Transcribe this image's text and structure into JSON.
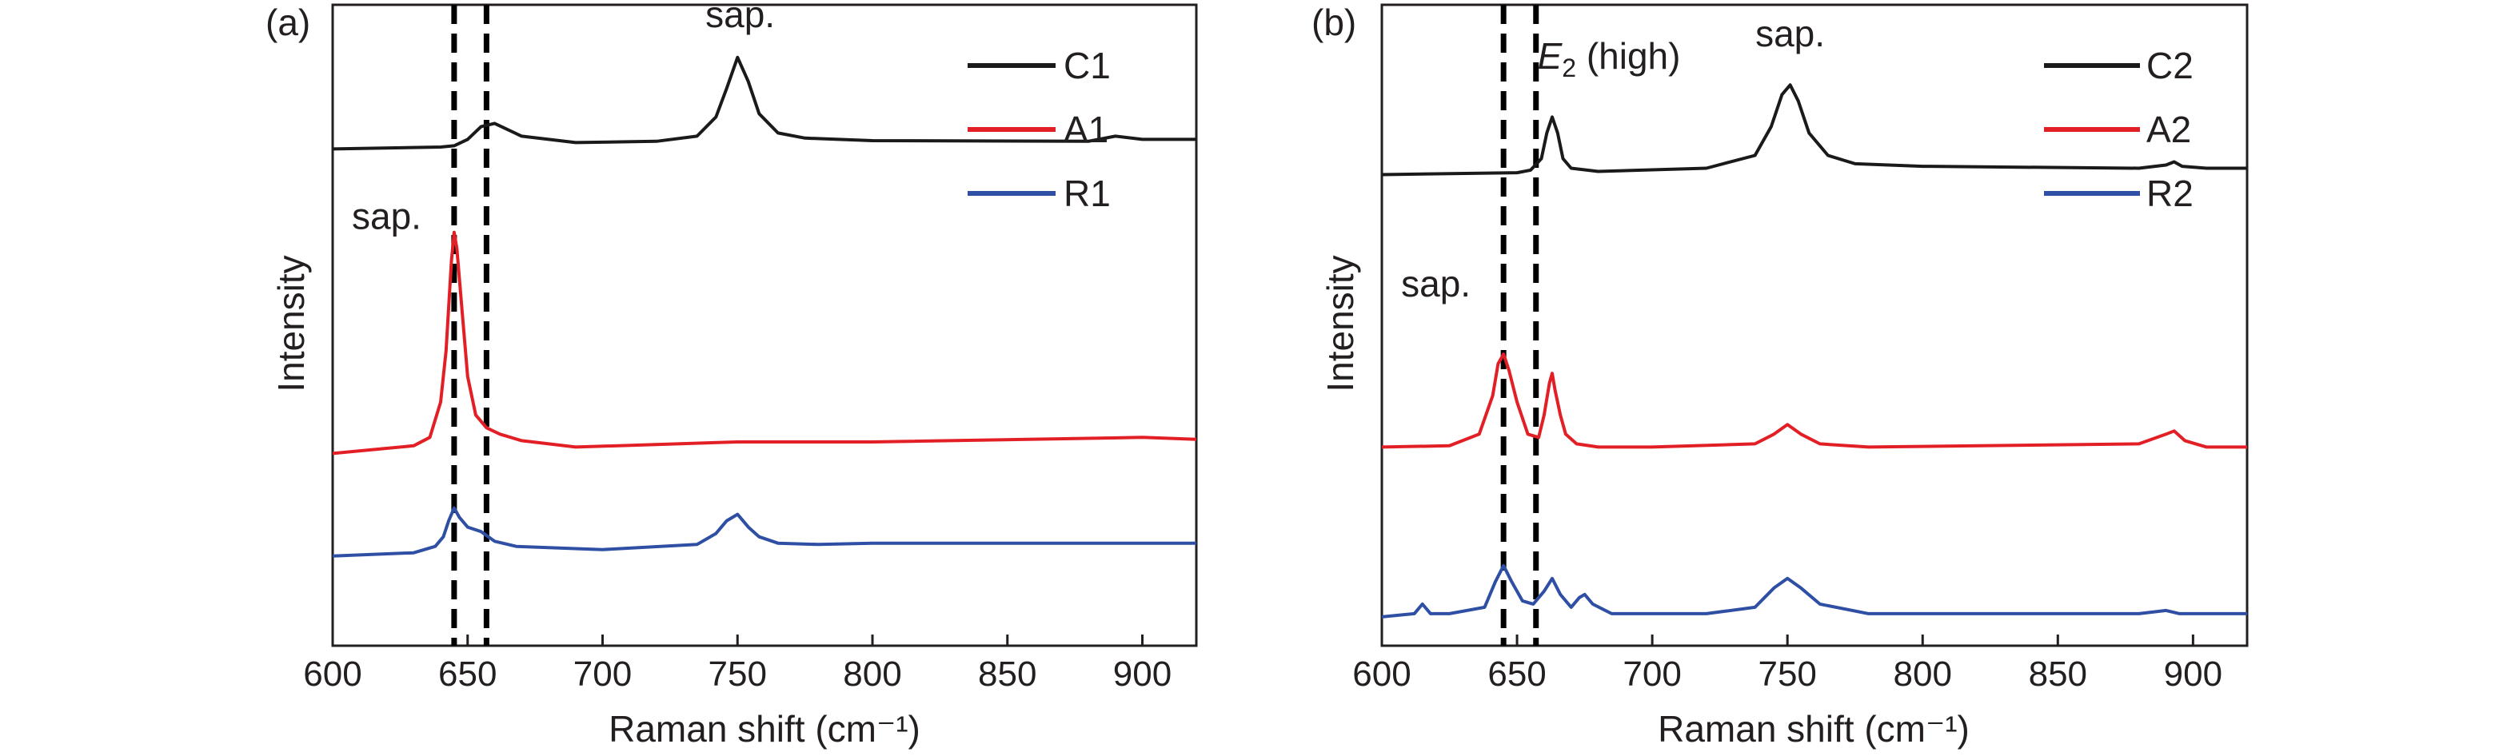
{
  "chart_data": [
    {
      "type": "line",
      "panel_label": "(a)",
      "xlabel": "Raman shift (cm⁻¹)",
      "ylabel": "Intensity",
      "xlim": [
        600,
        920
      ],
      "ylim": [
        0,
        1
      ],
      "xticks": [
        600,
        650,
        700,
        750,
        800,
        850,
        900
      ],
      "y_ticks_shown": false,
      "grid": false,
      "legend": "top-right",
      "reference_lines_x": [
        645,
        657
      ],
      "series": [
        {
          "name": "C1",
          "color": "#1a1a1a",
          "x": [
            600,
            640,
            645,
            650,
            655,
            660,
            665,
            670,
            690,
            720,
            735,
            742,
            746,
            750,
            754,
            758,
            765,
            775,
            800,
            880,
            890,
            900,
            920
          ],
          "y": [
            0.775,
            0.778,
            0.78,
            0.79,
            0.81,
            0.815,
            0.805,
            0.795,
            0.785,
            0.787,
            0.795,
            0.825,
            0.87,
            0.918,
            0.88,
            0.83,
            0.8,
            0.792,
            0.788,
            0.787,
            0.795,
            0.79,
            0.79
          ]
        },
        {
          "name": "A1",
          "color": "#e31f26",
          "x": [
            600,
            620,
            630,
            636,
            640,
            642,
            644,
            645,
            646,
            648,
            650,
            653,
            657,
            662,
            670,
            690,
            750,
            800,
            900,
            920
          ],
          "y": [
            0.3,
            0.308,
            0.312,
            0.325,
            0.38,
            0.46,
            0.6,
            0.645,
            0.62,
            0.52,
            0.42,
            0.36,
            0.34,
            0.33,
            0.32,
            0.31,
            0.318,
            0.318,
            0.325,
            0.322
          ]
        },
        {
          "name": "R1",
          "color": "#2e4fa3",
          "x": [
            600,
            630,
            638,
            641,
            643,
            645,
            647,
            650,
            655,
            660,
            668,
            700,
            735,
            742,
            746,
            750,
            754,
            758,
            765,
            780,
            800,
            900,
            920
          ],
          "y": [
            0.14,
            0.145,
            0.155,
            0.17,
            0.195,
            0.215,
            0.2,
            0.185,
            0.178,
            0.163,
            0.155,
            0.15,
            0.158,
            0.175,
            0.195,
            0.205,
            0.185,
            0.17,
            0.16,
            0.158,
            0.16,
            0.16,
            0.16
          ]
        }
      ],
      "annotations": [
        {
          "text": "sap.",
          "x": 751,
          "y": 0.965
        },
        {
          "text": "sap.",
          "x": 620,
          "y": 0.65
        }
      ]
    },
    {
      "type": "line",
      "panel_label": "(b)",
      "xlabel": "Raman shift (cm⁻¹)",
      "ylabel": "Intensity",
      "xlim": [
        600,
        920
      ],
      "ylim": [
        0,
        1
      ],
      "xticks": [
        600,
        650,
        700,
        750,
        800,
        850,
        900
      ],
      "y_ticks_shown": false,
      "grid": false,
      "legend": "top-right",
      "reference_lines_x": [
        645,
        657
      ],
      "series": [
        {
          "name": "C2",
          "color": "#1a1a1a",
          "x": [
            600,
            650,
            655,
            659,
            661,
            663,
            665,
            667,
            670,
            680,
            720,
            738,
            744,
            748,
            751,
            754,
            758,
            765,
            775,
            800,
            880,
            890,
            893,
            896,
            905,
            920
          ],
          "y": [
            0.735,
            0.738,
            0.742,
            0.76,
            0.8,
            0.825,
            0.8,
            0.76,
            0.745,
            0.74,
            0.745,
            0.765,
            0.81,
            0.86,
            0.875,
            0.85,
            0.8,
            0.765,
            0.752,
            0.748,
            0.745,
            0.75,
            0.755,
            0.748,
            0.745,
            0.745
          ]
        },
        {
          "name": "A2",
          "color": "#e31f26",
          "x": [
            600,
            625,
            636,
            641,
            643,
            645,
            647,
            650,
            654,
            658,
            660,
            662,
            663,
            664,
            666,
            668,
            672,
            680,
            700,
            738,
            745,
            750,
            755,
            762,
            780,
            880,
            890,
            893,
            897,
            905,
            920
          ],
          "y": [
            0.31,
            0.312,
            0.33,
            0.39,
            0.44,
            0.455,
            0.43,
            0.38,
            0.33,
            0.325,
            0.36,
            0.41,
            0.425,
            0.4,
            0.36,
            0.33,
            0.315,
            0.31,
            0.31,
            0.315,
            0.33,
            0.345,
            0.33,
            0.315,
            0.31,
            0.315,
            0.33,
            0.335,
            0.32,
            0.31,
            0.31
          ]
        },
        {
          "name": "R2",
          "color": "#2e4fa3",
          "x": [
            600,
            612,
            615,
            618,
            625,
            638,
            642,
            645,
            648,
            652,
            656,
            660,
            663,
            666,
            670,
            673,
            675,
            678,
            685,
            720,
            738,
            745,
            750,
            755,
            762,
            780,
            880,
            890,
            895,
            920
          ],
          "y": [
            0.045,
            0.05,
            0.065,
            0.05,
            0.05,
            0.06,
            0.1,
            0.125,
            0.1,
            0.07,
            0.065,
            0.085,
            0.105,
            0.08,
            0.06,
            0.075,
            0.08,
            0.065,
            0.05,
            0.05,
            0.06,
            0.09,
            0.105,
            0.09,
            0.065,
            0.05,
            0.05,
            0.055,
            0.05,
            0.05
          ]
        }
      ],
      "annotations": [
        {
          "text": "sap.",
          "x": 751,
          "y": 0.935
        },
        {
          "text": "sap.",
          "x": 620,
          "y": 0.545
        },
        {
          "text": "E",
          "subscript": "2",
          "suffix": " (high)",
          "x": 684,
          "y": 0.9
        }
      ]
    }
  ]
}
